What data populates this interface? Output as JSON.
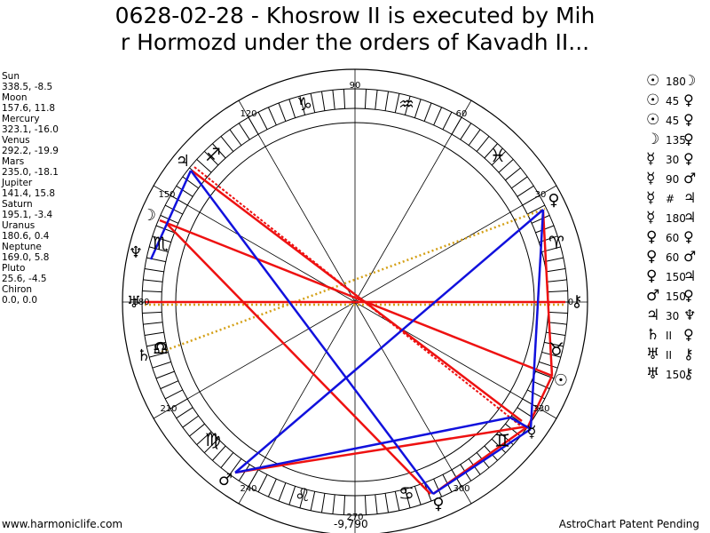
{
  "title": {
    "line1": "0628-02-28 - Khosrow II is executed by Mih",
    "line2": "r Hormozd under the orders of Kavadh II..."
  },
  "planets": [
    {
      "name": "Sun",
      "coords": "338.5, -8.5"
    },
    {
      "name": "Moon",
      "coords": "157.6, 11.8"
    },
    {
      "name": "Mercury",
      "coords": "323.1, -16.0"
    },
    {
      "name": "Venus",
      "coords": "292.2, -19.9"
    },
    {
      "name": "Mars",
      "coords": "235.0, -18.1"
    },
    {
      "name": "Jupiter",
      "coords": "141.4, 15.8"
    },
    {
      "name": "Saturn",
      "coords": "195.1, -3.4"
    },
    {
      "name": "Uranus",
      "coords": "180.6, 0.4"
    },
    {
      "name": "Neptune",
      "coords": "169.0, 5.8"
    },
    {
      "name": "Pluto",
      "coords": "25.6, -4.5"
    },
    {
      "name": "Chiron",
      "coords": "0.0, 0.0"
    }
  ],
  "aspects": [
    {
      "g1": "☉",
      "angle": "180",
      "g2": "☽"
    },
    {
      "g1": "☉",
      "angle": "45",
      "g2": "♀"
    },
    {
      "g1": "☉",
      "angle": "45",
      "g2": "♀"
    },
    {
      "g1": "☽",
      "angle": "135",
      "g2": "♀"
    },
    {
      "g1": "☿",
      "angle": "30",
      "g2": "♀"
    },
    {
      "g1": "☿",
      "angle": "90",
      "g2": "♂"
    },
    {
      "g1": "☿",
      "angle": "#",
      "g2": "♃"
    },
    {
      "g1": "☿",
      "angle": "180",
      "g2": "♃"
    },
    {
      "g1": "♀",
      "angle": "60",
      "g2": "♀"
    },
    {
      "g1": "♀",
      "angle": "60",
      "g2": "♂"
    },
    {
      "g1": "♀",
      "angle": "150",
      "g2": "♃"
    },
    {
      "g1": "♂",
      "angle": "150",
      "g2": "♀"
    },
    {
      "g1": "♃",
      "angle": "30",
      "g2": "♆"
    },
    {
      "g1": "♄",
      "angle": "II",
      "g2": "♀"
    },
    {
      "g1": "♅",
      "angle": "II",
      "g2": "⚷"
    },
    {
      "g1": "♅",
      "angle": "150",
      "g2": "⚷"
    }
  ],
  "wheel": {
    "degree_labels": [
      "90",
      "60",
      "30",
      "0",
      "330",
      "300",
      "270",
      "240",
      "210",
      "180",
      "150",
      "120"
    ],
    "sign_glyphs": [
      "♈",
      "♉",
      "♊",
      "♋",
      "♌",
      "♍",
      "♎",
      "♏",
      "♐",
      "♑",
      "♒",
      "♓"
    ],
    "planet_glyphs": [
      "☉",
      "☽",
      "☿",
      "♀",
      "♂",
      "♃",
      "♄",
      "♅",
      "♆",
      "♀",
      "⚷",
      "☊"
    ],
    "colors": {
      "hard_aspect": "#ee1111",
      "soft_aspect": "#1111dd",
      "minor_aspect": "#d4a017"
    }
  },
  "footer": {
    "left": "www.harmoniclife.com",
    "center": "-9,790",
    "right": "AstroChart Patent Pending"
  }
}
